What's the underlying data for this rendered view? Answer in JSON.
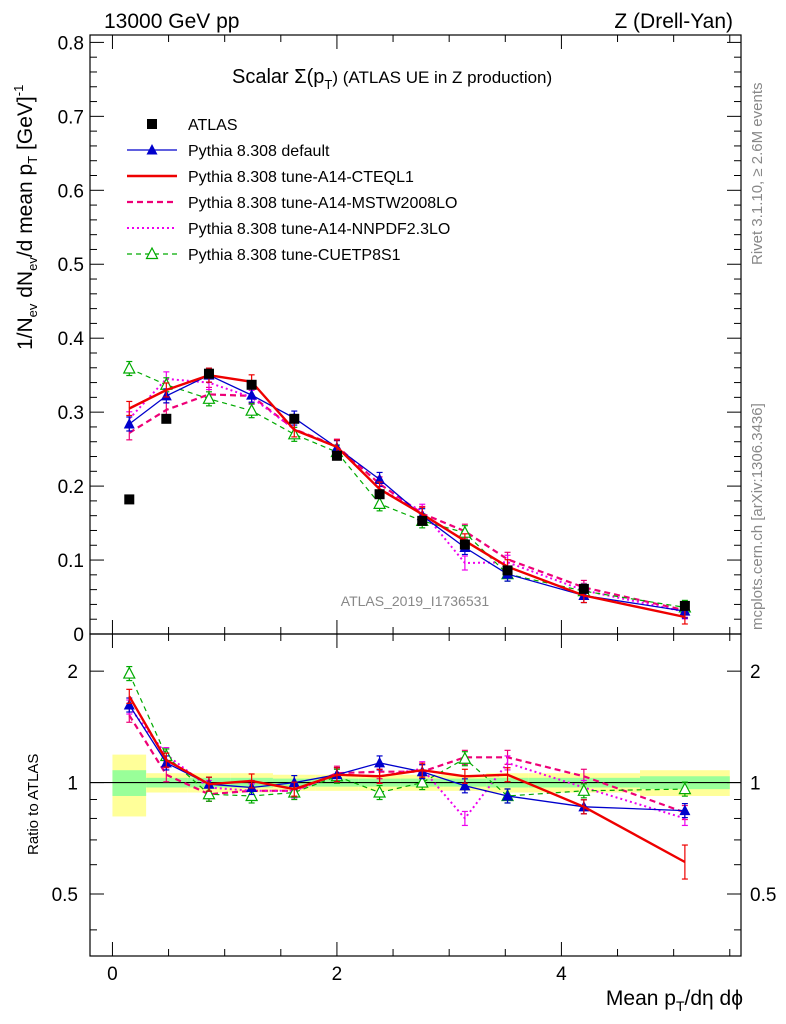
{
  "header": {
    "left": "13000 GeV pp",
    "right": "Z (Drell-Yan)"
  },
  "plot_title": {
    "prefix": "Scalar Σ(p",
    "sub": "T",
    "suffix": ") (ATLAS UE in Z production)"
  },
  "side_text": {
    "rivet": "Rivet 3.1.10, ≥ 2.6M events",
    "mcplots": "mcplots.cern.ch [arXiv:1306.3436]"
  },
  "analysis_label": "ATLAS_2019_I1736531",
  "axes": {
    "ylabel_main": "1/N_ev dN_ev/d mean p_T [GeV]^-1",
    "ylabel_ratio": "Ratio to ATLAS",
    "xlabel": "Mean p_T/dη dϕ"
  },
  "colors": {
    "data": "#000000",
    "default": "#0000cc",
    "cteql1": "#ee0000",
    "mstw": "#ee0077",
    "nnpdf": "#ee00ee",
    "cuetp8s1": "#00aa00",
    "band_outer": "#ffff99",
    "band_inner": "#99ff99"
  },
  "chart_data": [
    {
      "type": "line",
      "panel": "main",
      "xlim": [
        -0.2,
        5.6
      ],
      "ylim": [
        0,
        0.81
      ],
      "x_ticks": [
        0,
        2,
        4
      ],
      "y_ticks": [
        0.1,
        0.2,
        0.3,
        0.4,
        0.5,
        0.6,
        0.7,
        0.8
      ],
      "y_tick_labels": [
        "0.1",
        "0.2",
        "0.3",
        "0.4",
        "0.5",
        "0.6",
        "0.7",
        "0.8"
      ],
      "y_zero_label": "0",
      "x": [
        0.15,
        0.48,
        0.86,
        1.24,
        1.62,
        2.0,
        2.38,
        2.76,
        3.14,
        3.52,
        4.2,
        5.1
      ],
      "series": [
        {
          "key": "atlas",
          "name": "ATLAS",
          "style": "data",
          "values": [
            0.182,
            0.291,
            0.352,
            0.337,
            0.291,
            0.241,
            0.189,
            0.153,
            0.121,
            0.086,
            0.061,
            0.038
          ]
        },
        {
          "key": "default",
          "name": "Pythia 8.308 default",
          "style": "default",
          "values": [
            0.284,
            0.322,
            0.35,
            0.323,
            0.292,
            0.252,
            0.209,
            0.16,
            0.117,
            0.081,
            0.052,
            0.031
          ]
        },
        {
          "key": "cteql1",
          "name": "Pythia 8.308 tune-A14-CTEQL1",
          "style": "cteql1",
          "values": [
            0.305,
            0.33,
            0.35,
            0.341,
            0.276,
            0.253,
            0.196,
            0.162,
            0.126,
            0.091,
            0.052,
            0.023
          ]
        },
        {
          "key": "mstw",
          "name": "Pythia 8.308 tune-A14-MSTW2008LO",
          "style": "mstw",
          "values": [
            0.272,
            0.303,
            0.324,
            0.322,
            0.277,
            0.254,
            0.203,
            0.163,
            0.139,
            0.101,
            0.063,
            0.032
          ]
        },
        {
          "key": "nnpdf",
          "name": "Pythia 8.308 tune-A14-NNPDF2.3LO",
          "style": "nnpdf",
          "values": [
            0.291,
            0.345,
            0.34,
            0.32,
            0.277,
            0.253,
            0.196,
            0.166,
            0.096,
            0.097,
            0.059,
            0.03
          ]
        },
        {
          "key": "cuetp8s1",
          "name": "Pythia 8.308 tune-CUETP8S1",
          "style": "cuetp8s1",
          "values": [
            0.359,
            0.337,
            0.318,
            0.302,
            0.27,
            0.246,
            0.176,
            0.153,
            0.137,
            0.081,
            0.058,
            0.036
          ]
        }
      ]
    },
    {
      "type": "line",
      "panel": "ratio",
      "xlim": [
        -0.2,
        5.6
      ],
      "ylim": [
        0.34,
        2.52
      ],
      "x_ticks": [
        0,
        2,
        4
      ],
      "x_tick_labels": [
        "0",
        "2",
        "4"
      ],
      "y_ticks": [
        0.5,
        1,
        2
      ],
      "y_tick_labels": [
        "0.5",
        "1",
        "2"
      ],
      "x": [
        0.15,
        0.48,
        0.86,
        1.24,
        1.62,
        2.0,
        2.38,
        2.76,
        3.14,
        3.52,
        4.2,
        5.1
      ],
      "band_edges": [
        0.0,
        0.3,
        0.67,
        1.05,
        1.43,
        1.81,
        2.19,
        2.57,
        2.95,
        3.33,
        3.71,
        4.7,
        5.5
      ],
      "band_outer": [
        0.19,
        0.06,
        0.06,
        0.06,
        0.05,
        0.05,
        0.05,
        0.05,
        0.05,
        0.06,
        0.06,
        0.08
      ],
      "band_inner": [
        0.08,
        0.03,
        0.03,
        0.03,
        0.025,
        0.025,
        0.025,
        0.025,
        0.025,
        0.03,
        0.03,
        0.04
      ],
      "series": [
        {
          "key": "default",
          "style": "default",
          "values": [
            1.62,
            1.13,
            0.99,
            0.97,
            1.0,
            1.05,
            1.13,
            1.07,
            0.98,
            0.92,
            0.86,
            0.84
          ]
        },
        {
          "key": "cteql1",
          "style": "cteql1",
          "values": [
            1.71,
            1.15,
            0.99,
            1.01,
            0.96,
            1.05,
            1.04,
            1.08,
            1.04,
            1.05,
            0.86,
            0.61
          ]
        },
        {
          "key": "mstw",
          "style": "mstw",
          "values": [
            1.52,
            1.05,
            0.93,
            0.95,
            0.95,
            1.06,
            1.07,
            1.07,
            1.17,
            1.17,
            1.04,
            0.83
          ]
        },
        {
          "key": "nnpdf",
          "style": "nnpdf",
          "values": [
            1.6,
            1.19,
            0.97,
            0.95,
            0.95,
            1.05,
            1.04,
            1.09,
            0.8,
            1.13,
            0.97,
            0.8
          ]
        },
        {
          "key": "cuetp8s1",
          "style": "cuetp8s1",
          "values": [
            1.97,
            1.18,
            0.93,
            0.92,
            0.94,
            1.04,
            0.94,
            1.0,
            1.16,
            0.92,
            0.95,
            0.96
          ]
        }
      ]
    }
  ]
}
